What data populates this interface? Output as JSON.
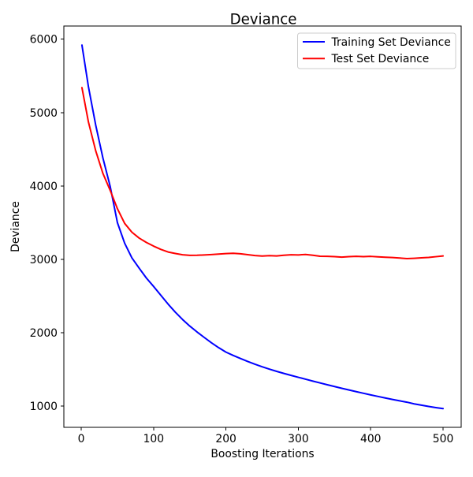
{
  "figure": {
    "background": "#ffffff"
  },
  "chart_data": {
    "type": "line",
    "title": "Deviance",
    "xlabel": "Boosting Iterations",
    "ylabel": "Deviance",
    "xlim": [
      -24,
      525
    ],
    "ylim": [
      710,
      6180
    ],
    "xticks": [
      0,
      100,
      200,
      300,
      400,
      500
    ],
    "yticks": [
      1000,
      2000,
      3000,
      4000,
      5000,
      6000
    ],
    "grid": false,
    "legend_position": "upper right",
    "series": [
      {
        "name": "Training Set Deviance",
        "color": "#0000ff",
        "x": [
          1,
          10,
          20,
          30,
          40,
          50,
          60,
          70,
          80,
          90,
          100,
          110,
          120,
          130,
          140,
          150,
          160,
          170,
          180,
          190,
          200,
          210,
          220,
          230,
          240,
          250,
          260,
          270,
          280,
          290,
          300,
          310,
          320,
          330,
          340,
          350,
          360,
          370,
          380,
          390,
          400,
          410,
          420,
          430,
          440,
          450,
          460,
          470,
          480,
          490,
          500
        ],
        "y": [
          5920,
          5350,
          4830,
          4380,
          3995,
          3500,
          3220,
          3020,
          2880,
          2745,
          2630,
          2510,
          2390,
          2280,
          2180,
          2090,
          2010,
          1935,
          1862,
          1795,
          1735,
          1690,
          1648,
          1608,
          1570,
          1535,
          1503,
          1473,
          1445,
          1418,
          1392,
          1366,
          1340,
          1315,
          1290,
          1266,
          1242,
          1219,
          1196,
          1174,
          1152,
          1131,
          1110,
          1090,
          1071,
          1053,
          1030,
          1012,
          995,
          979,
          965
        ]
      },
      {
        "name": "Test Set Deviance",
        "color": "#ff0000",
        "x": [
          1,
          10,
          20,
          30,
          40,
          50,
          60,
          70,
          80,
          90,
          100,
          110,
          120,
          130,
          140,
          150,
          160,
          170,
          180,
          190,
          200,
          210,
          220,
          230,
          240,
          250,
          260,
          270,
          280,
          290,
          300,
          310,
          320,
          330,
          340,
          350,
          360,
          370,
          380,
          390,
          400,
          410,
          420,
          430,
          440,
          450,
          460,
          470,
          480,
          490,
          500
        ],
        "y": [
          5340,
          4870,
          4480,
          4170,
          3940,
          3690,
          3490,
          3370,
          3290,
          3230,
          3180,
          3135,
          3100,
          3080,
          3062,
          3054,
          3055,
          3060,
          3065,
          3072,
          3078,
          3082,
          3075,
          3064,
          3052,
          3045,
          3050,
          3046,
          3056,
          3062,
          3060,
          3066,
          3056,
          3042,
          3040,
          3036,
          3030,
          3036,
          3040,
          3036,
          3040,
          3034,
          3028,
          3024,
          3018,
          3010,
          3014,
          3020,
          3026,
          3036,
          3046
        ]
      }
    ]
  }
}
